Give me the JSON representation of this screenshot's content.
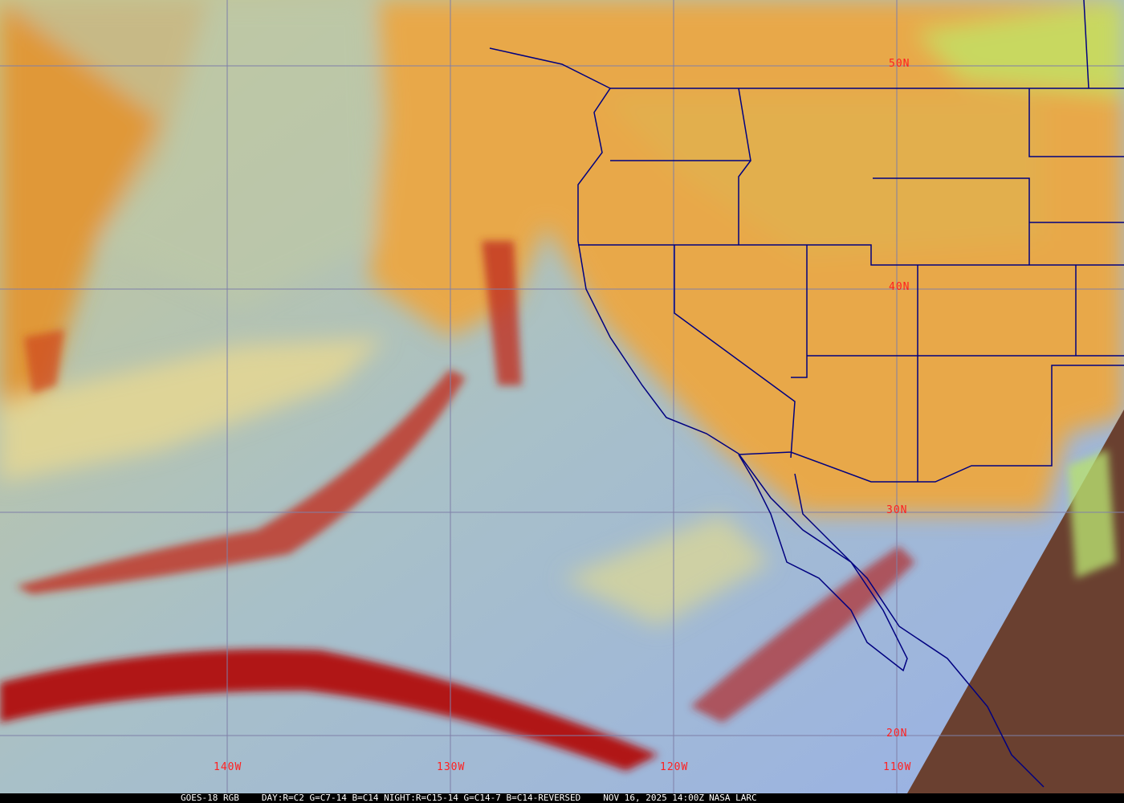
{
  "caption": {
    "satellite": "GOES-18 RGB",
    "recipe": "DAY:R=C2 G=C7-14 B=C14 NIGHT:R=C15-14 G=C14-7 B=C14-REVERSED",
    "datetime": "NOV 16, 2025 14:00Z",
    "credit": "NASA LARC"
  },
  "grid": {
    "longitudes": [
      "140W",
      "130W",
      "120W",
      "110W"
    ],
    "latitudes": [
      "50N",
      "40N",
      "30N",
      "20N"
    ],
    "label_color": "#ff2020",
    "line_color": "#7f7fa8"
  },
  "colors": {
    "ocean_clear": "#9cb4d8",
    "cloud_orange": "#e8a040",
    "cloud_yellow": "#e0d890",
    "cloud_red": "#b02020",
    "night_land": "#6a4030",
    "boundaries": "#000080"
  }
}
